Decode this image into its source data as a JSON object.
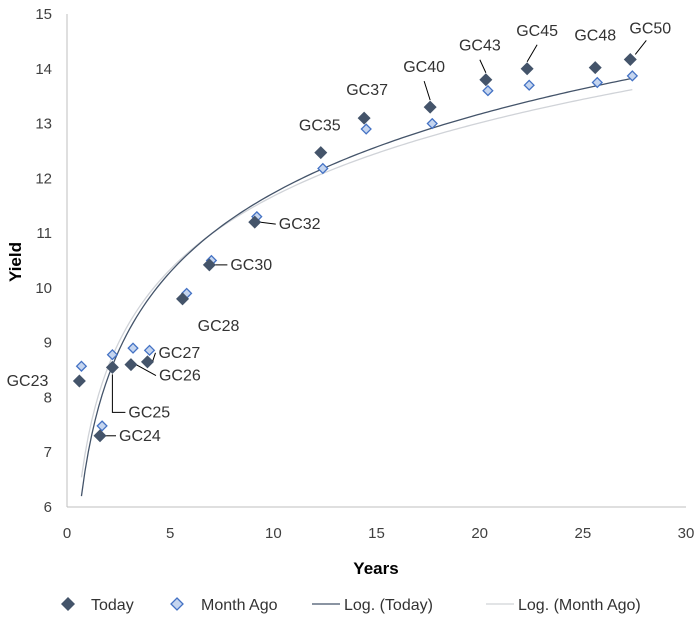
{
  "chart_data": {
    "type": "scatter",
    "xlabel": "Years",
    "ylabel": "Yield",
    "xlim": [
      0,
      30
    ],
    "ylim": [
      6,
      15
    ],
    "xticks": [
      "0",
      "5",
      "10",
      "15",
      "20",
      "25",
      "30"
    ],
    "yticks": [
      "6",
      "7",
      "8",
      "9",
      "10",
      "11",
      "12",
      "13",
      "14",
      "15"
    ],
    "grid": false,
    "legend_position": "bottom",
    "series": [
      {
        "name": "Today",
        "marker": "diamond-filled",
        "color": "#44546a",
        "points": [
          {
            "label": "GC23",
            "x": 0.6,
            "y": 8.3
          },
          {
            "label": "GC24",
            "x": 1.6,
            "y": 7.3
          },
          {
            "label": "GC25",
            "x": 2.2,
            "y": 8.55
          },
          {
            "label": "GC26",
            "x": 3.1,
            "y": 8.6
          },
          {
            "label": "GC27",
            "x": 3.9,
            "y": 8.65
          },
          {
            "label": "GC28",
            "x": 5.6,
            "y": 9.8
          },
          {
            "label": "GC30",
            "x": 6.9,
            "y": 10.42
          },
          {
            "label": "GC32",
            "x": 9.1,
            "y": 11.2
          },
          {
            "label": "GC35",
            "x": 12.3,
            "y": 12.47
          },
          {
            "label": "GC37",
            "x": 14.4,
            "y": 13.1
          },
          {
            "label": "GC40",
            "x": 17.6,
            "y": 13.3
          },
          {
            "label": "GC43",
            "x": 20.3,
            "y": 13.8
          },
          {
            "label": "GC45",
            "x": 22.3,
            "y": 14.0
          },
          {
            "label": "GC48",
            "x": 25.6,
            "y": 14.02
          },
          {
            "label": "GC50",
            "x": 27.3,
            "y": 14.17
          }
        ]
      },
      {
        "name": "Month Ago",
        "marker": "diamond-open",
        "color": "#4472c4",
        "fill": "#c5d5ef",
        "points": [
          {
            "x": 0.7,
            "y": 8.57
          },
          {
            "x": 1.7,
            "y": 7.48
          },
          {
            "x": 2.2,
            "y": 8.78
          },
          {
            "x": 3.2,
            "y": 8.9
          },
          {
            "x": 4.0,
            "y": 8.86
          },
          {
            "x": 5.8,
            "y": 9.9
          },
          {
            "x": 7.0,
            "y": 10.5
          },
          {
            "x": 9.2,
            "y": 11.3
          },
          {
            "x": 12.4,
            "y": 12.18
          },
          {
            "x": 14.5,
            "y": 12.9
          },
          {
            "x": 17.7,
            "y": 13.0
          },
          {
            "x": 20.4,
            "y": 13.6
          },
          {
            "x": 22.4,
            "y": 13.7
          },
          {
            "x": 25.7,
            "y": 13.75
          },
          {
            "x": 27.4,
            "y": 13.87
          }
        ]
      }
    ],
    "trendlines": [
      {
        "name": "Log. (Today)",
        "type": "logarithmic",
        "color": "#44546a",
        "a": 6.94,
        "b": 2.08,
        "x_range": [
          0.7,
          27.4
        ]
      },
      {
        "name": "Log. (Month Ago)",
        "type": "logarithmic",
        "color": "#d0d3d8",
        "a": 7.23,
        "b": 1.93,
        "x_range": [
          0.7,
          27.4
        ]
      }
    ],
    "legend": [
      "Today",
      "Month Ago",
      "Log. (Today)",
      "Log. (Month Ago)"
    ]
  }
}
